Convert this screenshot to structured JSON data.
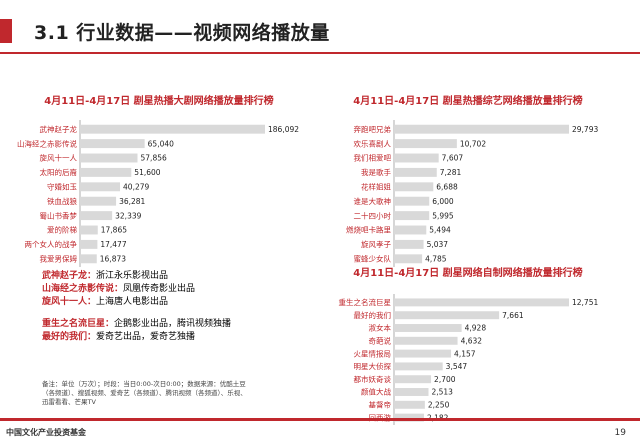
{
  "header": {
    "title": "3.1 行业数据——视频网络播放量"
  },
  "chart_data": [
    {
      "type": "bar",
      "orientation": "horizontal",
      "title": "4月11日-4月17日 剧星热播大剧网络播放量排行榜",
      "categories": [
        "武神赵子龙",
        "山海经之赤影传说",
        "旋风十一人",
        "太阳的后裔",
        "守婚如玉",
        "铁血战狼",
        "蜀山书香梦",
        "爱的阶梯",
        "两个女人的战争",
        "我爱男保姆"
      ],
      "values": [
        186092,
        65040,
        57856,
        51600,
        40279,
        36281,
        32339,
        17865,
        17477,
        16873
      ],
      "labels": [
        "186,092",
        "65,040",
        "57,856",
        "51,600",
        "40,279",
        "36,281",
        "32,339",
        "17,865",
        "17,477",
        "16,873"
      ]
    },
    {
      "type": "bar",
      "orientation": "horizontal",
      "title": "4月11日-4月17日 剧星热播综艺网络播放量排行榜",
      "categories": [
        "奔跑吧兄弟",
        "欢乐喜剧人",
        "我们相爱吧",
        "我是歌手",
        "花样姐姐",
        "谁是大歌神",
        "二十四小时",
        "燃烧吧卡路里",
        "旋风孝子",
        "蜜蜂少女队"
      ],
      "values": [
        29793,
        10702,
        7607,
        7281,
        6688,
        6000,
        5995,
        5494,
        5037,
        4785
      ],
      "labels": [
        "29,793",
        "10,702",
        "7,607",
        "7,281",
        "6,688",
        "6,000",
        "5,995",
        "5,494",
        "5,037",
        "4,785"
      ]
    },
    {
      "type": "bar",
      "orientation": "horizontal",
      "title": "4月11日-4月17日 剧星网络自制网络播放量排行榜",
      "categories": [
        "重生之名流巨星",
        "最好的我们",
        "淑女本",
        "奇葩说",
        "火星情报局",
        "明星大侦探",
        "都市妖奇谈",
        "颜值大战",
        "基督帝",
        "回西游"
      ],
      "values": [
        12751,
        7661,
        4928,
        4632,
        4157,
        3547,
        2700,
        2513,
        2250,
        2182
      ],
      "labels": [
        "12,751",
        "7,661",
        "4,928",
        "4,632",
        "4,157",
        "3,547",
        "2,700",
        "2,513",
        "2,250",
        "2,182"
      ]
    }
  ],
  "notes": [
    {
      "key": "武神赵子龙：",
      "text": "浙江永乐影视出品"
    },
    {
      "key": "山海经之赤影传说：",
      "text": "凤凰传奇影业出品"
    },
    {
      "key": "旋风十一人：",
      "text": "上海唐人电影出品"
    },
    {
      "key": "重生之名流巨星：",
      "text": "企鹅影业出品，腾讯视频独播"
    },
    {
      "key": "最好的我们：",
      "text": "爱奇艺出品，爱奇艺独播"
    }
  ],
  "footnote": "备注：单位（万次）；时段：当日0:00-次日0:00；数据来源：优酷土豆（各频道）、搜狐视频、爱奇艺（各频道）、腾讯视频（各频道）、乐视、迅雷看看、芒果TV",
  "footer": {
    "org": "中国文化产业投资基金",
    "page": "19"
  },
  "colors": {
    "accent": "#c0282d",
    "bar": "#d9d9d9"
  }
}
